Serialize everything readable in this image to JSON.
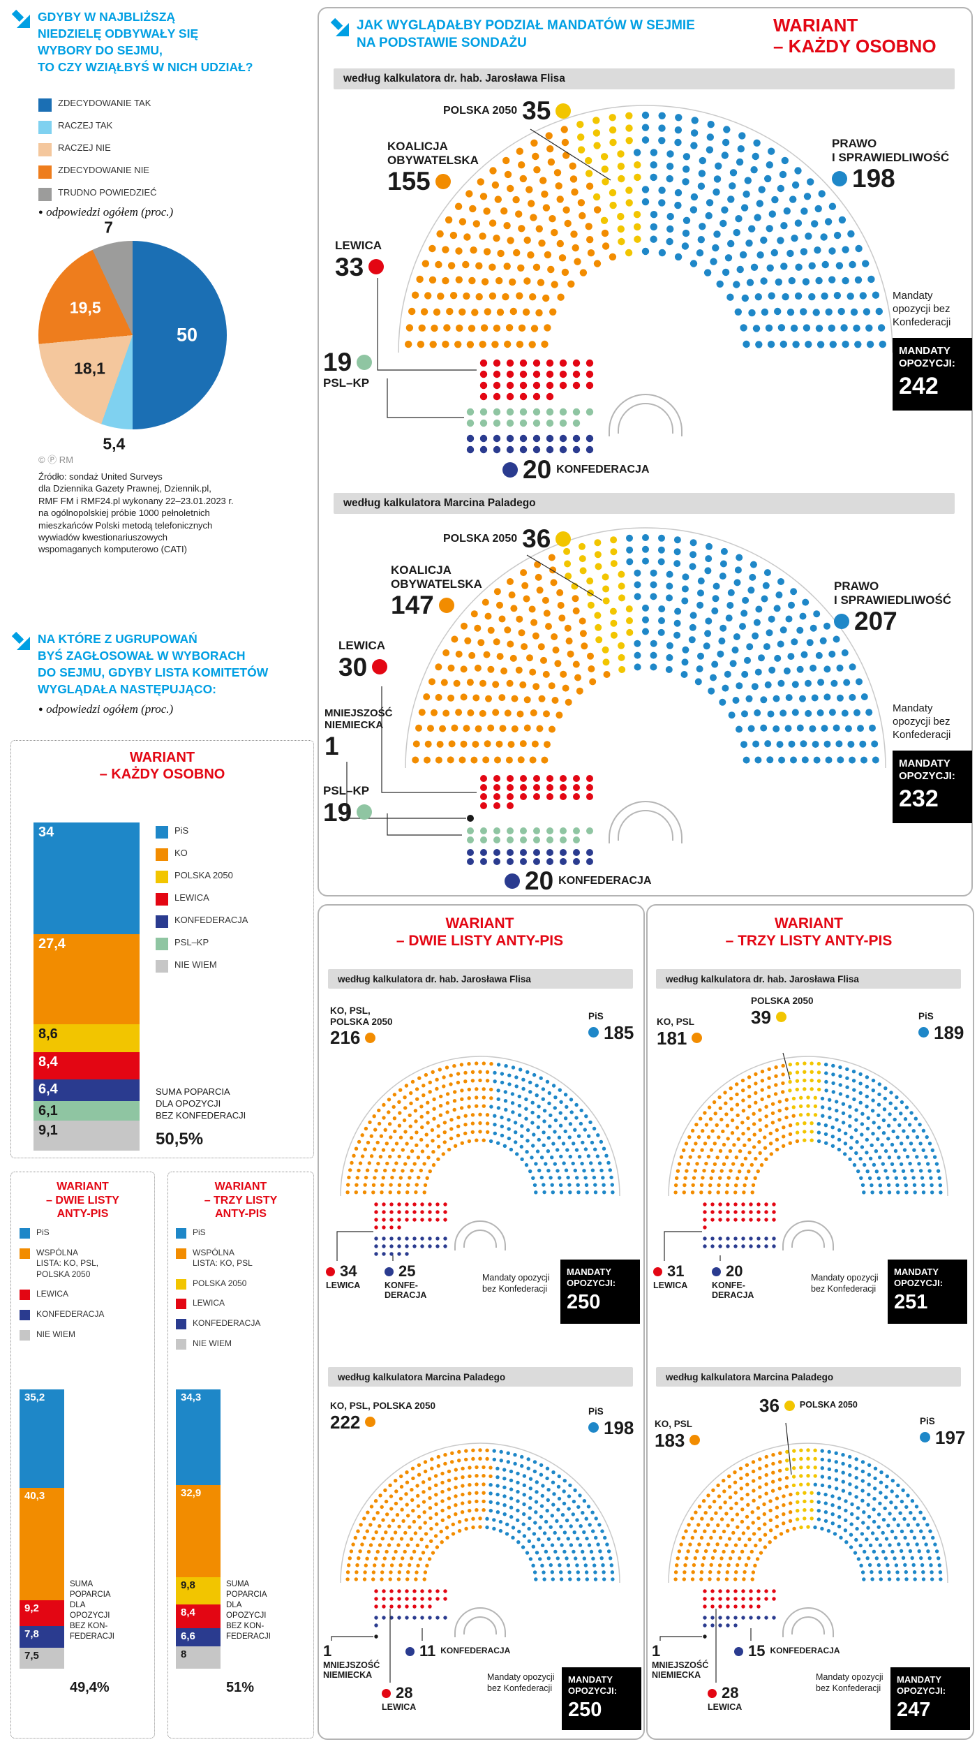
{
  "page": {
    "q1": {
      "title": "GDYBY W NAJBLIŻSZĄ\nNIEDZIELĘ ODBYWAŁY SIĘ\nWYBORY DO SEJMU,\nTO CZY WZIĄŁBYŚ W NICH UDZIAŁ?",
      "note": "odpowiedzi ogółem (proc.)"
    },
    "q2": {
      "title": "NA KTÓRE Z UGRUPOWAŃ\nBYŚ ZAGŁOSOWAŁ W WYBORACH\nDO SEJMU, GDYBY LISTA KOMITETÓW\nWYGLĄDAŁA NASTĘPUJĄCO:",
      "note": "odpowiedzi ogółem (proc.)"
    },
    "right_header": {
      "title": "JAK WYGLĄDAŁBY PODZIAŁ MANDATÓW W SEJMIE\nNA PODSTAWIE SONDAŻU",
      "variant": "WARIANT\n– KAŻDY OSOBNO"
    },
    "variant1_title": "WARIANT\n– KAŻDY OSOBNO",
    "dwie_title_small": "WARIANT\n– DWIE LISTY\nANTY-PIS",
    "trzy_title_small": "WARIANT\n– TRZY LISTY\nANTY-PIS",
    "dwie_title": "WARIANT\n– DWIE LISTY ANTY-PIS",
    "trzy_title": "WARIANT\n– TRZY LISTY ANTY-PIS",
    "copyright": "© Ⓟ RM",
    "source": "Źródło: sondaż United Surveys\ndla Dziennika Gazety Prawnej, Dziennik.pl,\nRMF FM i RMF24.pl wykonany 22–23.01.2023 r.\nna ogólnopolskiej próbie 1000 pełnoletnich\nmieszkańców Polski metodą telefonicznych\nwywiadów kwestionariuszowych\nwspomaganych komputerowo (CATI)"
  },
  "chart_data": [
    {
      "id": "turnout-pie",
      "type": "pie",
      "title": "GDYBY W NAJBLIŻSZĄ NIEDZIELĘ ODBYWAŁY SIĘ WYBORY DO SEJMU, TO CZY WZIĄŁBYŚ W NICH UDZIAŁ?",
      "note": "odpowiedzi ogółem (proc.)",
      "slices": [
        {
          "label": "ZDECYDOWANIE TAK",
          "value": 50,
          "display": "50",
          "color": "#1B6FB4",
          "text_color": "#ffffff"
        },
        {
          "label": "RACZEJ TAK",
          "value": 5.4,
          "display": "5,4",
          "color": "#7FD1F0",
          "text_color": "#1a1a1a"
        },
        {
          "label": "RACZEJ NIE",
          "value": 18.1,
          "display": "18,1",
          "color": "#F4C79D",
          "text_color": "#1a1a1a"
        },
        {
          "label": "ZDECYDOWANIE NIE",
          "value": 19.5,
          "display": "19,5",
          "color": "#EE7D1D",
          "text_color": "#ffffff"
        },
        {
          "label": "TRUDNO POWIEDZIEĆ",
          "value": 7,
          "display": "7",
          "color": "#9C9C9B",
          "text_color": "#1a1a1a"
        }
      ]
    },
    {
      "id": "support-kazdy-osobno",
      "type": "bar",
      "title": "WARIANT – KAŻDY OSOBNO",
      "segments": [
        {
          "party": "PiS",
          "value": 34,
          "display": "34",
          "color": "#1E87C8",
          "text_color": "#ffffff"
        },
        {
          "party": "KO",
          "value": 27.4,
          "display": "27,4",
          "color": "#F28C00",
          "text_color": "#ffffff"
        },
        {
          "party": "POLSKA 2050",
          "value": 8.6,
          "display": "8,6",
          "color": "#F2C500",
          "text_color": "#1a1a1a"
        },
        {
          "party": "LEWICA",
          "value": 8.4,
          "display": "8,4",
          "color": "#E30613",
          "text_color": "#ffffff"
        },
        {
          "party": "KONFEDERACJA",
          "value": 6.4,
          "display": "6,4",
          "color": "#2A3B8F",
          "text_color": "#ffffff"
        },
        {
          "party": "PSL–KP",
          "value": 6.1,
          "display": "6,1",
          "color": "#8FC5A2",
          "text_color": "#1a1a1a"
        },
        {
          "party": "NIE WIEM",
          "value": 9.1,
          "display": "9,1",
          "color": "#C6C6C6",
          "text_color": "#1a1a1a"
        }
      ],
      "summary": {
        "text": "SUMA POPARCIA\nDLA OPOZYCJI\nBEZ KONFEDERACJI",
        "value": "50,5%"
      }
    },
    {
      "id": "support-dwie-listy",
      "type": "bar",
      "title": "WARIANT – DWIE LISTY ANTY-PIS",
      "legend": [
        {
          "label": "PiS",
          "color": "#1E87C8"
        },
        {
          "label": "WSPÓLNA\nLISTA: KO, PSL,\nPOLSKA 2050",
          "color": "#F28C00"
        },
        {
          "label": "LEWICA",
          "color": "#E30613"
        },
        {
          "label": "KONFEDERACJA",
          "color": "#2A3B8F"
        },
        {
          "label": "NIE WIEM",
          "color": "#C6C6C6"
        }
      ],
      "segments": [
        {
          "party": "PiS",
          "value": 35.2,
          "display": "35,2",
          "color": "#1E87C8",
          "text_color": "#ffffff"
        },
        {
          "party": "WSPÓLNA LISTA: KO, PSL, POLSKA 2050",
          "value": 40.3,
          "display": "40,3",
          "color": "#F28C00",
          "text_color": "#ffffff"
        },
        {
          "party": "LEWICA",
          "value": 9.2,
          "display": "9,2",
          "color": "#E30613",
          "text_color": "#ffffff"
        },
        {
          "party": "KONFEDERACJA",
          "value": 7.8,
          "display": "7,8",
          "color": "#2A3B8F",
          "text_color": "#ffffff"
        },
        {
          "party": "NIE WIEM",
          "value": 7.5,
          "display": "7,5",
          "color": "#C6C6C6",
          "text_color": "#1a1a1a"
        }
      ],
      "summary": {
        "text": "SUMA\nPOPARCIA\nDLA\nOPOZYCJI\nBEZ KON-\nFEDERACJI",
        "value": "49,4%"
      }
    },
    {
      "id": "support-trzy-listy",
      "type": "bar",
      "title": "WARIANT – TRZY LISTY ANTY-PIS",
      "legend": [
        {
          "label": "PiS",
          "color": "#1E87C8"
        },
        {
          "label": "WSPÓLNA\nLISTA: KO, PSL",
          "color": "#F28C00"
        },
        {
          "label": "POLSKA 2050",
          "color": "#F2C500"
        },
        {
          "label": "LEWICA",
          "color": "#E30613"
        },
        {
          "label": "KONFEDERACJA",
          "color": "#2A3B8F"
        },
        {
          "label": "NIE WIEM",
          "color": "#C6C6C6"
        }
      ],
      "segments": [
        {
          "party": "PiS",
          "value": 34.3,
          "display": "34,3",
          "color": "#1E87C8",
          "text_color": "#ffffff"
        },
        {
          "party": "WSPÓLNA LISTA: KO, PSL",
          "value": 32.9,
          "display": "32,9",
          "color": "#F28C00",
          "text_color": "#ffffff"
        },
        {
          "party": "POLSKA 2050",
          "value": 9.8,
          "display": "9,8",
          "color": "#F2C500",
          "text_color": "#1a1a1a"
        },
        {
          "party": "LEWICA",
          "value": 8.4,
          "display": "8,4",
          "color": "#E30613",
          "text_color": "#ffffff"
        },
        {
          "party": "KONFEDERACJA",
          "value": 6.6,
          "display": "6,6",
          "color": "#2A3B8F",
          "text_color": "#ffffff"
        },
        {
          "party": "NIE WIEM",
          "value": 8,
          "display": "8",
          "color": "#C6C6C6",
          "text_color": "#1a1a1a"
        }
      ],
      "summary": {
        "text": "SUMA\nPOPARCIA\nDLA\nOPOZYCJI\nBEZ KON-\nFEDERACJI",
        "value": "51%"
      }
    },
    {
      "id": "sejm-flis-osobno",
      "type": "parliament",
      "variant": "WARIANT – KAŻDY OSOBNO",
      "calculator": "według kalkulatora dr. hab. Jarosława Flisa",
      "total_seats": 460,
      "parties": {
        "ko": {
          "name": "KOALICJA\nOBYWATELSKA",
          "seats": 155,
          "color": "#F28C00"
        },
        "p2050": {
          "name": "POLSKA 2050",
          "seats": 35,
          "color": "#F2C500"
        },
        "pis": {
          "name": "PRAWO\nI SPRAWIEDLIWOŚĆ",
          "seats": 198,
          "color": "#1E87C8"
        },
        "lewica": {
          "name": "LEWICA",
          "seats": 33,
          "color": "#E30613"
        },
        "psl": {
          "name": "PSL–KP",
          "seats": 19,
          "color": "#8FC5A2"
        },
        "konf": {
          "name": "KONFEDERACJA",
          "seats": 20,
          "color": "#2A3B8F"
        }
      },
      "arc_order": [
        "ko",
        "p2050",
        "pis"
      ],
      "bench_order": [
        "lewica",
        "psl",
        "konf"
      ],
      "opposition": {
        "label": "MANDATY\nOPOZYCJI:",
        "value": "242",
        "note": "Mandaty opozycji bez Konfederacji"
      }
    },
    {
      "id": "sejm-palade-osobno",
      "type": "parliament",
      "variant": "WARIANT – KAŻDY OSOBNO",
      "calculator": "według kalkulatora Marcina Paladego",
      "total_seats": 460,
      "parties": {
        "ko": {
          "name": "KOALICJA\nOBYWATELSKA",
          "seats": 147,
          "color": "#F28C00"
        },
        "p2050": {
          "name": "POLSKA 2050",
          "seats": 36,
          "color": "#F2C500"
        },
        "pis": {
          "name": "PRAWO\nI SPRAWIEDLIWOŚĆ",
          "seats": 207,
          "color": "#1E87C8"
        },
        "lewica": {
          "name": "LEWICA",
          "seats": 30,
          "color": "#E30613"
        },
        "mn": {
          "name": "MNIEJSZOŚĆ\nNIEMIECKA",
          "seats": 1,
          "color": "#1a1a1a"
        },
        "psl": {
          "name": "PSL–KP",
          "seats": 19,
          "color": "#8FC5A2"
        },
        "konf": {
          "name": "KONFEDERACJA",
          "seats": 20,
          "color": "#2A3B8F"
        }
      },
      "arc_order": [
        "ko",
        "p2050",
        "pis"
      ],
      "bench_order": [
        "lewica",
        "mn",
        "psl",
        "konf"
      ],
      "opposition": {
        "label": "MANDATY\nOPOZYCJI:",
        "value": "232",
        "note": "Mandaty opozycji bez Konfederacji"
      }
    },
    {
      "id": "sejm-flis-dwie",
      "type": "parliament",
      "variant": "WARIANT – DWIE LISTY ANTY-PIS",
      "calculator": "według kalkulatora dr. hab. Jarosława Flisa",
      "total_seats": 460,
      "parties": {
        "joint": {
          "name": "KO, PSL,\nPOLSKA 2050",
          "seats": 216,
          "color": "#F28C00"
        },
        "pis": {
          "name": "PiS",
          "seats": 185,
          "color": "#1E87C8"
        },
        "lewica": {
          "name": "LEWICA",
          "seats": 34,
          "color": "#E30613"
        },
        "konf": {
          "name": "KONFE-\nDERACJA",
          "seats": 25,
          "color": "#2A3B8F"
        }
      },
      "arc_order": [
        "joint",
        "pis"
      ],
      "bench_order": [
        "lewica",
        "konf"
      ],
      "opposition": {
        "label": "MANDATY\nOPOZYCJI:",
        "value": "250",
        "note": "Mandaty opozycji bez Konfederacji"
      }
    },
    {
      "id": "sejm-palade-dwie",
      "type": "parliament",
      "variant": "WARIANT – DWIE LISTY ANTY-PIS",
      "calculator": "według kalkulatora Marcina Paladego",
      "total_seats": 460,
      "parties": {
        "joint": {
          "name": "KO, PSL, POLSKA 2050",
          "seats": 222,
          "color": "#F28C00"
        },
        "pis": {
          "name": "PiS",
          "seats": 198,
          "color": "#1E87C8"
        },
        "lewica": {
          "name": "LEWICA",
          "seats": 28,
          "color": "#E30613"
        },
        "konf": {
          "name": "KONFEDERACJA",
          "seats": 11,
          "color": "#2A3B8F"
        },
        "mn": {
          "name": "MNIEJSZOŚĆ\nNIEMIECKA",
          "seats": 1,
          "color": "#1a1a1a"
        }
      },
      "arc_order": [
        "joint",
        "pis"
      ],
      "bench_order": [
        "lewica",
        "konf",
        "mn"
      ],
      "opposition": {
        "label": "MANDATY\nOPOZYCJI:",
        "value": "250",
        "note": "Mandaty opozycji bez Konfederacji"
      }
    },
    {
      "id": "sejm-flis-trzy",
      "type": "parliament",
      "variant": "WARIANT – TRZY LISTY ANTY-PIS",
      "calculator": "według kalkulatora dr. hab. Jarosława Flisa",
      "total_seats": 460,
      "parties": {
        "ko": {
          "name": "KO, PSL",
          "seats": 181,
          "color": "#F28C00"
        },
        "p2050": {
          "name": "POLSKA 2050",
          "seats": 39,
          "color": "#F2C500"
        },
        "pis": {
          "name": "PiS",
          "seats": 189,
          "color": "#1E87C8"
        },
        "lewica": {
          "name": "LEWICA",
          "seats": 31,
          "color": "#E30613"
        },
        "konf": {
          "name": "KONFE-\nDERACJA",
          "seats": 20,
          "color": "#2A3B8F"
        }
      },
      "arc_order": [
        "ko",
        "p2050",
        "pis"
      ],
      "bench_order": [
        "lewica",
        "konf"
      ],
      "opposition": {
        "label": "MANDATY\nOPOZYCJI:",
        "value": "251",
        "note": "Mandaty opozycji bez Konfederacji"
      }
    },
    {
      "id": "sejm-palade-trzy",
      "type": "parliament",
      "variant": "WARIANT – TRZY LISTY ANTY-PIS",
      "calculator": "według kalkulatora Marcina Paladego",
      "total_seats": 460,
      "parties": {
        "ko": {
          "name": "KO, PSL",
          "seats": 183,
          "color": "#F28C00"
        },
        "p2050": {
          "name": "POLSKA 2050",
          "seats": 36,
          "color": "#F2C500"
        },
        "pis": {
          "name": "PiS",
          "seats": 197,
          "color": "#1E87C8"
        },
        "lewica": {
          "name": "LEWICA",
          "seats": 28,
          "color": "#E30613"
        },
        "konf": {
          "name": "KONFEDERACJA",
          "seats": 15,
          "color": "#2A3B8F"
        },
        "mn": {
          "name": "MNIEJSZOŚĆ\nNIEMIECKA",
          "seats": 1,
          "color": "#1a1a1a"
        }
      },
      "arc_order": [
        "ko",
        "p2050",
        "pis"
      ],
      "bench_order": [
        "lewica",
        "konf",
        "mn"
      ],
      "opposition": {
        "label": "MANDATY\nOPOZYCJI:",
        "value": "247",
        "note": "Mandaty opozycji bez Konfederacji"
      }
    }
  ]
}
